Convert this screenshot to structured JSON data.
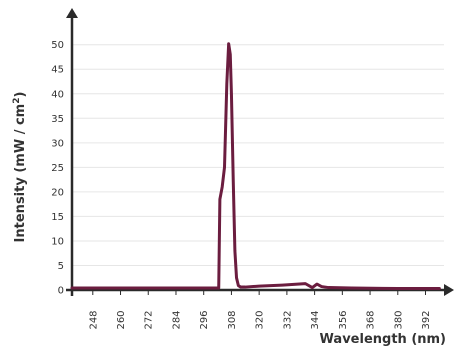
{
  "chart_data": {
    "type": "line",
    "title": "",
    "xlabel": "Wavelength (nm)",
    "ylabel_main": "Intensity (mW / cm",
    "ylabel_sup": "2",
    "ylabel_tail": ")",
    "xlim": [
      239,
      400
    ],
    "ylim": [
      0,
      53
    ],
    "grid": true,
    "y_ticks": [
      0,
      5,
      10,
      15,
      20,
      25,
      30,
      35,
      40,
      45,
      50
    ],
    "x_ticks": [
      248,
      260,
      272,
      284,
      296,
      308,
      320,
      332,
      344,
      356,
      368,
      380,
      392
    ],
    "series": [
      {
        "color": "#6b1d3f",
        "x": [
          239,
          250,
          270,
          290,
          300,
          302.5,
          303.0,
          303.4,
          304.0,
          305.0,
          306.0,
          306.8,
          307.5,
          308.0,
          308.8,
          309.5,
          310.2,
          311.0,
          312.0,
          314.0,
          320,
          330,
          340,
          343,
          345,
          347,
          350,
          360,
          380,
          398
        ],
        "y": [
          0.4,
          0.4,
          0.4,
          0.4,
          0.4,
          0.4,
          18.5,
          19.5,
          21.0,
          25.0,
          42.0,
          50.2,
          48.0,
          40.0,
          22.0,
          8.0,
          2.5,
          0.9,
          0.6,
          0.6,
          0.8,
          1.0,
          1.3,
          0.5,
          1.2,
          0.7,
          0.5,
          0.4,
          0.3,
          0.3
        ]
      }
    ]
  }
}
